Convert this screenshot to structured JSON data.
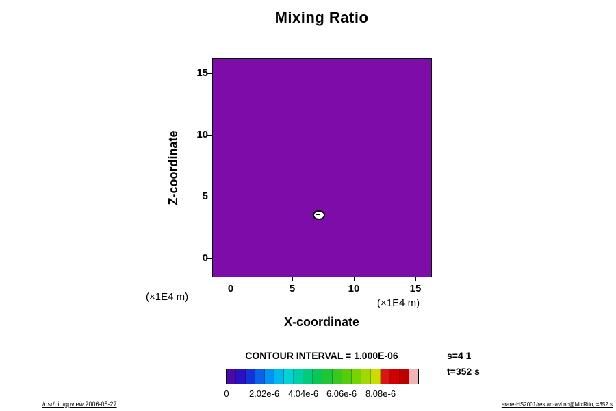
{
  "title": "Mixing Ratio",
  "axes": {
    "x_label": "X-coordinate",
    "y_label": "Z-coordinate",
    "x_ticks": [
      "0",
      "5",
      "10",
      "15"
    ],
    "y_ticks": [
      "0",
      "5",
      "10",
      "15"
    ],
    "x_unit": "(×1E4 m)",
    "y_unit": "(×1E4 m)"
  },
  "plot": {
    "field_color": "#7d0ca8",
    "border_color": "#000000"
  },
  "contour_note": "CONTOUR INTERVAL = 1.000E-06",
  "colorbar": {
    "tick_labels": [
      "0",
      "2.02e-6",
      "4.04e-6",
      "6.06e-6",
      "8.08e-6"
    ],
    "cells": [
      "#4a0aaa",
      "#2a10c4",
      "#1432d8",
      "#0a62e8",
      "#0492f2",
      "#02b6ee",
      "#00d4d4",
      "#00d0a8",
      "#00cc7c",
      "#06c852",
      "#1ec634",
      "#38c81e",
      "#56cc0a",
      "#78d200",
      "#a0d800",
      "#ccdc00",
      "#dc1414",
      "#d00000",
      "#bc0000",
      "#f0b4b4"
    ]
  },
  "annotations": {
    "step": "s=4 1",
    "time": "t=352 s"
  },
  "footer": {
    "left": "/usr/bin/gpview 2006-05-27",
    "right": "arare-HS2001/restart-avl.nc@MixRtio,t=352 s"
  },
  "chart_data": {
    "type": "heatmap",
    "title": "Mixing Ratio",
    "xlabel": "X-coordinate (×1E4 m)",
    "ylabel": "Z-coordinate (×1E4 m)",
    "xlim": [
      -1.5,
      16.3
    ],
    "ylim": [
      -1.4,
      16.2
    ],
    "x_ticks": [
      0,
      5,
      10,
      15
    ],
    "y_ticks": [
      0,
      5,
      10,
      15
    ],
    "background_field_value": 0,
    "contour_interval": 1e-06,
    "colorbar_ticks": [
      0,
      2.02e-06,
      4.04e-06,
      6.06e-06,
      8.08e-06
    ],
    "colorbar_range": [
      0,
      1.01e-05
    ],
    "features": [
      {
        "x": 7.1,
        "z": 3.5,
        "description": "small closed contour ring (localized mixing-ratio maximum) with white interior and center marker"
      }
    ],
    "legend_position": "bottom",
    "grid": false,
    "annotations": [
      "s=4 1",
      "t=352 s"
    ]
  }
}
